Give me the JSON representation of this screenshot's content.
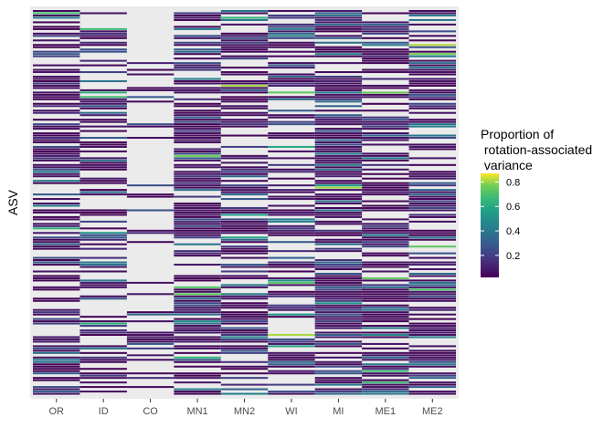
{
  "chart_data": {
    "type": "heatmap",
    "title": "",
    "xlabel": "",
    "ylabel": "ASV",
    "categories": [
      "OR",
      "ID",
      "CO",
      "MN1",
      "MN2",
      "WI",
      "MI",
      "ME1",
      "ME2"
    ],
    "rows_shown": 170,
    "y_tick_labels": "none",
    "na_color": "#ebebeb",
    "panel_background": "#ebebeb",
    "colorscale": "viridis",
    "legend": {
      "title_lines": [
        "Proportion of",
        " rotation-associated",
        " variance"
      ],
      "ticks": [
        0.2,
        0.4,
        0.6,
        0.8
      ],
      "range": [
        0.02,
        0.87
      ],
      "placement": "right"
    },
    "grid": true,
    "value_note": "Individual cell values are not legible; each column is a sequence of cells whose colors range from dark purple (~0.02) through teal/green to yellow (~0.87), with many gray (NA) cells, especially in CO, ID and WI."
  }
}
